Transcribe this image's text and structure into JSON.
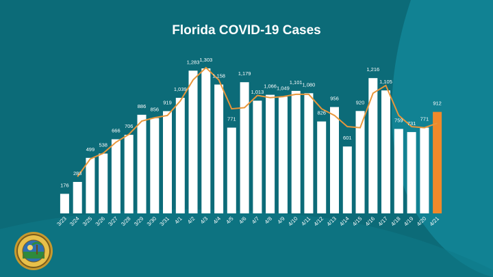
{
  "slide": {
    "title": "Florida COVID-19 Cases",
    "background_color": "#0c6b78",
    "wave_color": "#118293",
    "seal_icon": "florida-state-seal"
  },
  "chart_data": {
    "type": "bar",
    "title": "Florida COVID-19 Cases",
    "xlabel": "",
    "ylabel": "",
    "ylim": [
      0,
      1400
    ],
    "grid": false,
    "legend": "none",
    "categories": [
      "3/23",
      "3/24",
      "3/25",
      "3/26",
      "3/27",
      "3/28",
      "3/29",
      "3/30",
      "3/31",
      "4/1",
      "4/2",
      "4/3",
      "4/4",
      "4/5",
      "4/6",
      "4/7",
      "4/8",
      "4/9",
      "4/10",
      "4/11",
      "4/12",
      "4/13",
      "4/14",
      "4/15",
      "4/16",
      "4/17",
      "4/18",
      "4/19",
      "4/20",
      "4/21"
    ],
    "data_labels": [
      "176",
      "283",
      "499",
      "538",
      "666",
      "706",
      "886",
      "856",
      "919",
      "1,039",
      "1,283",
      "1,303",
      "1,158",
      "771",
      "1,179",
      "1,013",
      "1,066",
      "1,049",
      "1,101",
      "1,080",
      "826",
      "956",
      "601",
      "920",
      "1,216",
      "1,105",
      "759",
      "731",
      "771",
      "912"
    ],
    "series": [
      {
        "type": "bar",
        "values": [
          176,
          283,
          499,
          538,
          666,
          706,
          886,
          856,
          919,
          1039,
          1283,
          1303,
          1158,
          771,
          1179,
          1013,
          1066,
          1049,
          1101,
          1080,
          826,
          956,
          601,
          920,
          1216,
          1105,
          759,
          731,
          771,
          912
        ],
        "color": "#ffffff",
        "highlight_index": 29,
        "highlight_color": "#f0892a"
      },
      {
        "type": "line",
        "values": [
          176,
          330,
          490,
          540,
          640,
          710,
          830,
          860,
          880,
          1010,
          1200,
          1310,
          1200,
          940,
          950,
          1060,
          1040,
          1050,
          1070,
          1070,
          940,
          880,
          780,
          770,
          1080,
          1150,
          880,
          780,
          770,
          810
        ],
        "color": "#e8963a"
      }
    ]
  }
}
